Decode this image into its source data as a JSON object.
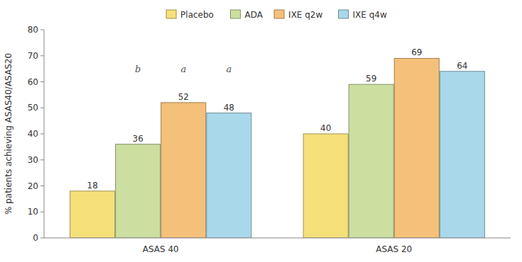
{
  "chart_data": {
    "type": "bar",
    "categories": [
      "ASAS 40",
      "ASAS 20"
    ],
    "series": [
      {
        "name": "Placebo",
        "color": "#F5E07A",
        "values": [
          18,
          40
        ]
      },
      {
        "name": "ADA",
        "color": "#CCDFA0",
        "values": [
          36,
          59
        ]
      },
      {
        "name": "IXE q2w",
        "color": "#F5C07A",
        "values": [
          52,
          69
        ]
      },
      {
        "name": "IXE q4w",
        "color": "#A8D8EA",
        "values": [
          48,
          64
        ]
      }
    ],
    "y_label": "% patients achieving ASAS40/ASAS20",
    "ylim": [
      0,
      80
    ],
    "yticks": [
      0,
      10,
      20,
      30,
      40,
      50,
      60,
      70,
      80
    ],
    "annotations": [
      {
        "text": "b",
        "x": "ASAS 40",
        "series": "ADA",
        "y": 63
      },
      {
        "text": "a",
        "x": "ASAS 40",
        "series": "IXE q2w",
        "y": 63
      },
      {
        "text": "a",
        "x": "ASAS 40",
        "series": "IXE q4w",
        "y": 63
      }
    ],
    "data_labels": true,
    "legend": "top",
    "grid": false
  }
}
